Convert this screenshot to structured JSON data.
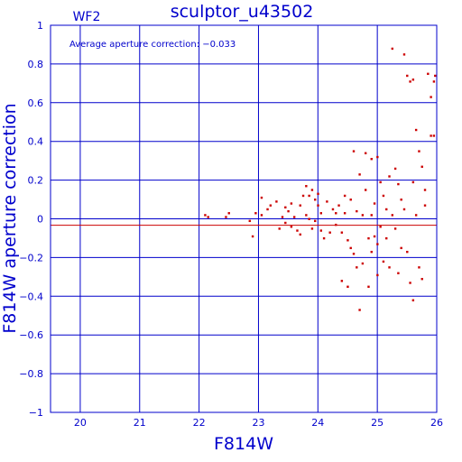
{
  "chart_data": {
    "type": "scatter",
    "title": "sculptor_u43502",
    "panel_label": "WF2",
    "xlabel": "F814W",
    "ylabel": "F814W aperture correction",
    "annotation": "Average aperture correction: −0.033",
    "xlim": [
      19.5,
      26
    ],
    "ylim": [
      -1,
      1
    ],
    "xticks": [
      20,
      21,
      22,
      23,
      24,
      25,
      26
    ],
    "yticks": [
      -1,
      -0.8,
      -0.6,
      -0.4,
      -0.2,
      0,
      0.2,
      0.4,
      0.6,
      0.8,
      1
    ],
    "xtick_labels": [
      "20",
      "21",
      "22",
      "23",
      "24",
      "25",
      "26"
    ],
    "ytick_labels": [
      "−1",
      "−0.8",
      "−0.6",
      "−0.4",
      "−0.2",
      "0",
      "0.2",
      "0.4",
      "0.6",
      "0.8",
      "1"
    ],
    "grid": true,
    "reference_lines": [
      {
        "y": 0,
        "color": "#0000cc"
      },
      {
        "y": -0.033,
        "color": "#cc0000"
      }
    ],
    "point_color": "#cc0000",
    "points": [
      [
        22.1,
        0.02
      ],
      [
        22.15,
        0.01
      ],
      [
        22.45,
        0.01
      ],
      [
        22.5,
        0.03
      ],
      [
        22.85,
        -0.01
      ],
      [
        22.9,
        -0.09
      ],
      [
        22.95,
        0.03
      ],
      [
        23.05,
        0.02
      ],
      [
        23.05,
        0.11
      ],
      [
        23.15,
        0.05
      ],
      [
        23.2,
        0.07
      ],
      [
        23.3,
        0.09
      ],
      [
        23.35,
        -0.05
      ],
      [
        23.4,
        0.01
      ],
      [
        23.45,
        -0.02
      ],
      [
        23.45,
        0.06
      ],
      [
        23.5,
        0.04
      ],
      [
        23.55,
        0.08
      ],
      [
        23.55,
        -0.04
      ],
      [
        23.6,
        0.01
      ],
      [
        23.65,
        -0.06
      ],
      [
        23.7,
        0.07
      ],
      [
        23.7,
        -0.08
      ],
      [
        23.75,
        0.12
      ],
      [
        23.8,
        0.17
      ],
      [
        23.8,
        0.02
      ],
      [
        23.85,
        0.12
      ],
      [
        23.85,
        0.0
      ],
      [
        23.9,
        0.15
      ],
      [
        23.9,
        -0.05
      ],
      [
        23.95,
        0.1
      ],
      [
        23.95,
        -0.01
      ],
      [
        24.0,
        0.13
      ],
      [
        24.0,
        0.07
      ],
      [
        24.05,
        -0.06
      ],
      [
        24.05,
        0.03
      ],
      [
        24.1,
        -0.1
      ],
      [
        24.15,
        0.09
      ],
      [
        24.2,
        -0.07
      ],
      [
        24.25,
        0.05
      ],
      [
        24.3,
        0.03
      ],
      [
        24.3,
        -0.03
      ],
      [
        24.35,
        0.07
      ],
      [
        24.4,
        -0.07
      ],
      [
        24.4,
        -0.32
      ],
      [
        24.45,
        0.12
      ],
      [
        24.45,
        0.03
      ],
      [
        24.5,
        -0.11
      ],
      [
        24.5,
        -0.35
      ],
      [
        24.55,
        0.1
      ],
      [
        24.55,
        -0.15
      ],
      [
        24.6,
        0.35
      ],
      [
        24.6,
        -0.18
      ],
      [
        24.65,
        0.04
      ],
      [
        24.65,
        -0.25
      ],
      [
        24.7,
        0.23
      ],
      [
        24.7,
        -0.47
      ],
      [
        24.75,
        0.02
      ],
      [
        24.75,
        -0.23
      ],
      [
        24.8,
        0.34
      ],
      [
        24.8,
        0.15
      ],
      [
        24.85,
        -0.1
      ],
      [
        24.85,
        -0.35
      ],
      [
        24.9,
        0.31
      ],
      [
        24.9,
        0.02
      ],
      [
        24.9,
        -0.17
      ],
      [
        24.95,
        0.08
      ],
      [
        24.95,
        -0.09
      ],
      [
        25.0,
        0.32
      ],
      [
        25.0,
        -0.13
      ],
      [
        25.0,
        -0.29
      ],
      [
        25.05,
        0.19
      ],
      [
        25.05,
        -0.04
      ],
      [
        25.1,
        0.12
      ],
      [
        25.1,
        -0.22
      ],
      [
        25.15,
        0.05
      ],
      [
        25.15,
        -0.1
      ],
      [
        25.2,
        0.22
      ],
      [
        25.2,
        -0.25
      ],
      [
        25.25,
        0.88
      ],
      [
        25.25,
        0.02
      ],
      [
        25.3,
        0.26
      ],
      [
        25.3,
        -0.05
      ],
      [
        25.35,
        0.18
      ],
      [
        25.35,
        -0.28
      ],
      [
        25.4,
        0.1
      ],
      [
        25.4,
        -0.15
      ],
      [
        25.45,
        0.85
      ],
      [
        25.45,
        0.05
      ],
      [
        25.5,
        0.74
      ],
      [
        25.5,
        -0.17
      ],
      [
        25.55,
        0.71
      ],
      [
        25.55,
        -0.33
      ],
      [
        25.6,
        0.72
      ],
      [
        25.6,
        0.19
      ],
      [
        25.6,
        -0.42
      ],
      [
        25.65,
        0.46
      ],
      [
        25.65,
        0.02
      ],
      [
        25.7,
        0.35
      ],
      [
        25.7,
        -0.25
      ],
      [
        25.75,
        0.27
      ],
      [
        25.75,
        -0.31
      ],
      [
        25.8,
        0.15
      ],
      [
        25.8,
        0.07
      ],
      [
        25.85,
        0.75
      ],
      [
        25.9,
        0.43
      ],
      [
        25.9,
        0.63
      ],
      [
        25.95,
        0.71
      ],
      [
        25.95,
        0.43
      ],
      [
        25.97,
        0.74
      ]
    ]
  }
}
